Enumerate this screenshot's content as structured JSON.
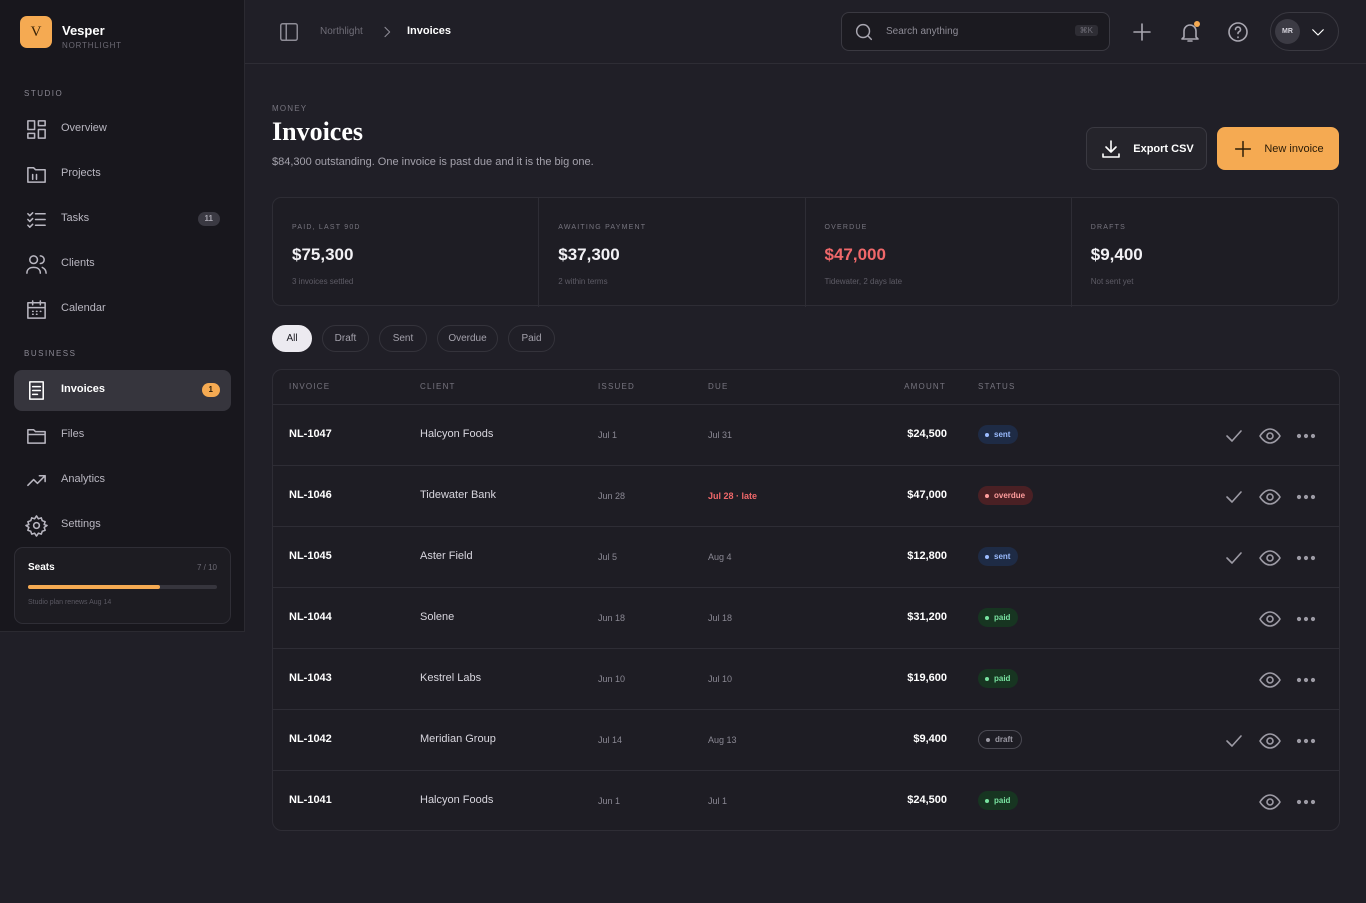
{
  "brand": {
    "initial": "V",
    "name": "Vesper",
    "workspace": "NORTHLIGHT"
  },
  "sidebar": {
    "sections": [
      {
        "title": "STUDIO",
        "items": [
          {
            "label": "Overview"
          },
          {
            "label": "Projects"
          },
          {
            "label": "Tasks",
            "badge": "11"
          },
          {
            "label": "Clients"
          },
          {
            "label": "Calendar"
          }
        ]
      },
      {
        "title": "BUSINESS",
        "items": [
          {
            "label": "Invoices",
            "badge": "1",
            "active": true
          },
          {
            "label": "Files"
          },
          {
            "label": "Analytics"
          },
          {
            "label": "Settings"
          }
        ]
      }
    ],
    "seats": {
      "title": "Seats",
      "count": "7 / 10",
      "note": "Studio plan renews Aug 14"
    }
  },
  "topbar": {
    "breadcrumb": [
      "Northlight",
      "Invoices"
    ],
    "search_placeholder": "Search anything",
    "shortcut": "⌘K",
    "avatar": "MR"
  },
  "header": {
    "eyebrow": "MONEY",
    "title": "Invoices",
    "subtitle": "$84,300 outstanding. One invoice is past due and it is the big one.",
    "actions": [
      "Export CSV",
      "New invoice"
    ]
  },
  "stats": [
    {
      "label": "PAID, LAST 90D",
      "value": "$75,300",
      "note": "3 invoices settled"
    },
    {
      "label": "AWAITING PAYMENT",
      "value": "$37,300",
      "note": "2 within terms"
    },
    {
      "label": "OVERDUE",
      "value": "$47,000",
      "note": "Tidewater, 2 days late"
    },
    {
      "label": "DRAFTS",
      "value": "$9,400",
      "note": "Not sent yet"
    }
  ],
  "filters": {
    "items": [
      "All",
      "Draft",
      "Sent",
      "Overdue",
      "Paid"
    ],
    "active": 0
  },
  "table": {
    "columns": [
      "INVOICE",
      "CLIENT",
      "ISSUED",
      "DUE",
      "AMOUNT",
      "STATUS"
    ],
    "rows": [
      {
        "invoice": "NL-1047",
        "client": "Halcyon Foods",
        "issued": "Jul 1",
        "due": "Jul 31",
        "amount": "$24,500",
        "status": "sent"
      },
      {
        "invoice": "NL-1046",
        "client": "Tidewater Bank",
        "issued": "Jun 28",
        "due": "Jul 28 · late",
        "amount": "$47,000",
        "status": "overdue"
      },
      {
        "invoice": "NL-1045",
        "client": "Aster Field",
        "issued": "Jul 5",
        "due": "Aug 4",
        "amount": "$12,800",
        "status": "sent"
      },
      {
        "invoice": "NL-1044",
        "client": "Solene",
        "issued": "Jun 18",
        "due": "Jul 18",
        "amount": "$31,200",
        "status": "paid"
      },
      {
        "invoice": "NL-1043",
        "client": "Kestrel Labs",
        "issued": "Jun 10",
        "due": "Jul 10",
        "amount": "$19,600",
        "status": "paid"
      },
      {
        "invoice": "NL-1042",
        "client": "Meridian Group",
        "issued": "Jul 14",
        "due": "Aug 13",
        "amount": "$9,400",
        "status": "draft"
      },
      {
        "invoice": "NL-1041",
        "client": "Halcyon Foods",
        "issued": "Jun 1",
        "due": "Jul 1",
        "amount": "$24,500",
        "status": "paid"
      }
    ]
  }
}
